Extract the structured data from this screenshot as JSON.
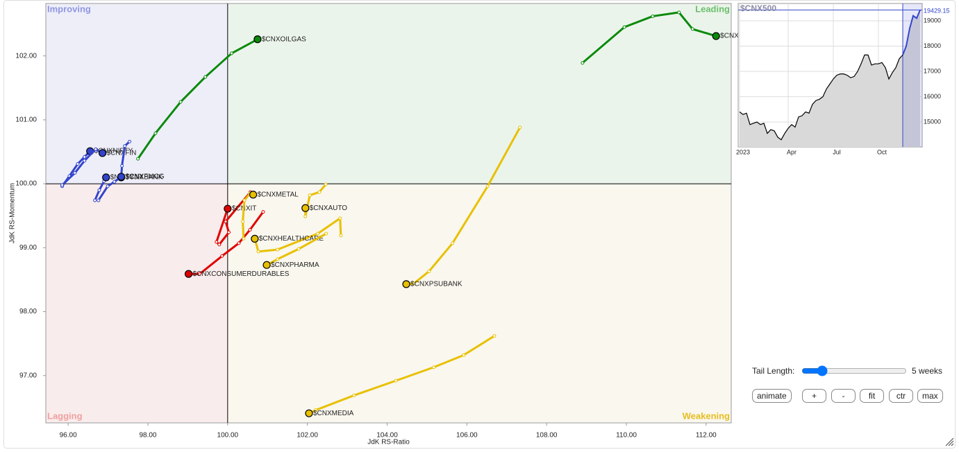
{
  "chart_data": [
    {
      "type": "rrg",
      "xlabel": "JdK RS-Ratio",
      "ylabel": "JdK RS-Momentum",
      "center": 100,
      "quadrants": [
        "Improving",
        "Leading",
        "Lagging",
        "Weakening"
      ],
      "xlim": [
        95.44,
        112.63
      ],
      "ylim": [
        96.26,
        102.82
      ],
      "xticks": [
        {
          "value": 96,
          "label": "96.00"
        },
        {
          "value": 98,
          "label": "98.00"
        },
        {
          "value": 100,
          "label": "100.00"
        },
        {
          "value": 102,
          "label": "102.00"
        },
        {
          "value": 104,
          "label": "104.00"
        },
        {
          "value": 106,
          "label": "106.00"
        },
        {
          "value": 108,
          "label": "108.00"
        },
        {
          "value": 110,
          "label": "110.00"
        },
        {
          "value": 112,
          "label": "112.00"
        }
      ],
      "yticks": [
        {
          "value": 97,
          "label": "97.00"
        },
        {
          "value": 98,
          "label": "98.00"
        },
        {
          "value": 99,
          "label": "99.00"
        },
        {
          "value": 100,
          "label": "100.00"
        },
        {
          "value": 101,
          "label": "101.00"
        },
        {
          "value": 102,
          "label": "102.00"
        }
      ],
      "series": [
        {
          "name": "$CNXOILGAS",
          "color": "#0a8a0a",
          "x": [
            97.75,
            98.19,
            98.82,
            99.44,
            100.1,
            100.75
          ],
          "y": [
            100.39,
            100.79,
            101.28,
            101.67,
            102.04,
            102.26
          ]
        },
        {
          "name": "$CNXREALTY",
          "color": "#0a8a0a",
          "x": [
            108.9,
            109.95,
            110.66,
            111.32,
            111.66,
            112.25
          ],
          "y": [
            101.89,
            102.45,
            102.62,
            102.68,
            102.42,
            102.31
          ]
        },
        {
          "name": "$CNXNIFTY",
          "color": "#3344cc",
          "x": [
            95.85,
            96.03,
            96.24,
            96.41,
            96.55
          ],
          "y": [
            99.96,
            100.12,
            100.31,
            100.42,
            100.51
          ]
        },
        {
          "name": "$CNXFIN",
          "color": "#3344cc",
          "x": [
            95.85,
            96.17,
            96.41,
            96.69,
            96.86
          ],
          "y": [
            99.98,
            100.17,
            100.36,
            100.54,
            100.48
          ]
        },
        {
          "name": "$NIFTYJR",
          "color": "#3344cc",
          "x": [
            96.67,
            96.78,
            96.9,
            96.95
          ],
          "y": [
            99.74,
            99.9,
            100.04,
            100.1
          ]
        },
        {
          "name": "$CNXBANK",
          "color": "#3344cc",
          "x": [
            97.54,
            97.42,
            97.35,
            97.33
          ],
          "y": [
            100.66,
            100.59,
            100.28,
            100.1
          ]
        },
        {
          "name": "$CNXFMCG",
          "color": "#3344cc",
          "x": [
            96.76,
            96.99,
            97.16,
            97.33
          ],
          "y": [
            99.74,
            99.96,
            100.03,
            100.11
          ]
        },
        {
          "name": "$CNXIT",
          "color": "#e00000",
          "x": [
            100.57,
            99.95,
            100.03,
            99.79,
            99.72,
            100.0
          ],
          "y": [
            99.87,
            99.41,
            99.24,
            99.05,
            99.09,
            99.61
          ]
        },
        {
          "name": "$CNXCONSUMERDURABLES",
          "color": "#e00000",
          "x": [
            100.89,
            100.56,
            100.28,
            99.86,
            99.3,
            99.02
          ],
          "y": [
            99.56,
            99.28,
            99.07,
            98.87,
            98.59,
            98.59
          ]
        },
        {
          "name": "$CNXMETAL",
          "color": "#e8c000",
          "x": [
            100.4,
            100.38,
            100.42,
            100.56,
            100.64
          ],
          "y": [
            99.14,
            99.41,
            99.74,
            99.85,
            99.83
          ]
        },
        {
          "name": "$CNXAUTO",
          "color": "#e8c000",
          "x": [
            102.46,
            102.3,
            102.06,
            101.95,
            101.95
          ],
          "y": [
            99.99,
            99.87,
            99.82,
            99.49,
            99.62
          ]
        },
        {
          "name": "$CNXHEALTHCARE",
          "color": "#e8c000",
          "x": [
            102.84,
            102.82,
            102.26,
            101.25,
            100.77,
            100.68
          ],
          "y": [
            99.19,
            99.46,
            99.22,
            98.97,
            98.94,
            99.14
          ]
        },
        {
          "name": "$CNXPHARMA",
          "color": "#e8c000",
          "x": [
            102.47,
            101.78,
            101.25,
            100.98
          ],
          "y": [
            99.22,
            98.98,
            98.82,
            98.73
          ]
        },
        {
          "name": "$CNXPSUBANK",
          "color": "#e8c000",
          "x": [
            107.33,
            106.52,
            105.64,
            105.05,
            104.67,
            104.48
          ],
          "y": [
            100.88,
            99.96,
            99.07,
            98.63,
            98.44,
            98.43
          ]
        },
        {
          "name": "$CNXMEDIA",
          "color": "#e8c000",
          "x": [
            106.69,
            105.92,
            105.17,
            104.22,
            103.17,
            102.21,
            102.04
          ],
          "y": [
            97.62,
            97.32,
            97.13,
            96.92,
            96.69,
            96.46,
            96.41
          ]
        }
      ]
    },
    {
      "type": "line",
      "title": "$CNX500",
      "color": "#000000",
      "highlight_color": "#3344cc",
      "xlim": [
        -0.4,
        52.6
      ],
      "ylim": [
        14014,
        19685
      ],
      "xticks": [
        {
          "value": 0,
          "label": "2023"
        },
        {
          "value": 14,
          "label": "Apr"
        },
        {
          "value": 27,
          "label": "Jul"
        },
        {
          "value": 40,
          "label": "Oct"
        }
      ],
      "yticks": [
        15000,
        16000,
        17000,
        18000,
        19000
      ],
      "values": [
        15400,
        15300,
        15350,
        14900,
        14950,
        15000,
        14900,
        14950,
        14550,
        14700,
        14650,
        14400,
        14300,
        14550,
        14750,
        14900,
        14800,
        15200,
        15250,
        15400,
        15350,
        15700,
        15850,
        15900,
        16000,
        16300,
        16500,
        16700,
        16850,
        16900,
        16900,
        16850,
        16750,
        16800,
        17000,
        17300,
        17650,
        17650,
        17250,
        17300,
        17300,
        17350,
        17150,
        16700,
        16950,
        17150,
        17500,
        17650,
        18000,
        18700,
        19200,
        19100,
        19429.15
      ]
    }
  ],
  "controls": {
    "tail_label": "Tail Length:",
    "tail_length": {
      "value": 5,
      "label": "5 weeks"
    },
    "buttons": [
      "animate",
      "+",
      "-",
      "fit",
      "ctr",
      "max"
    ]
  }
}
